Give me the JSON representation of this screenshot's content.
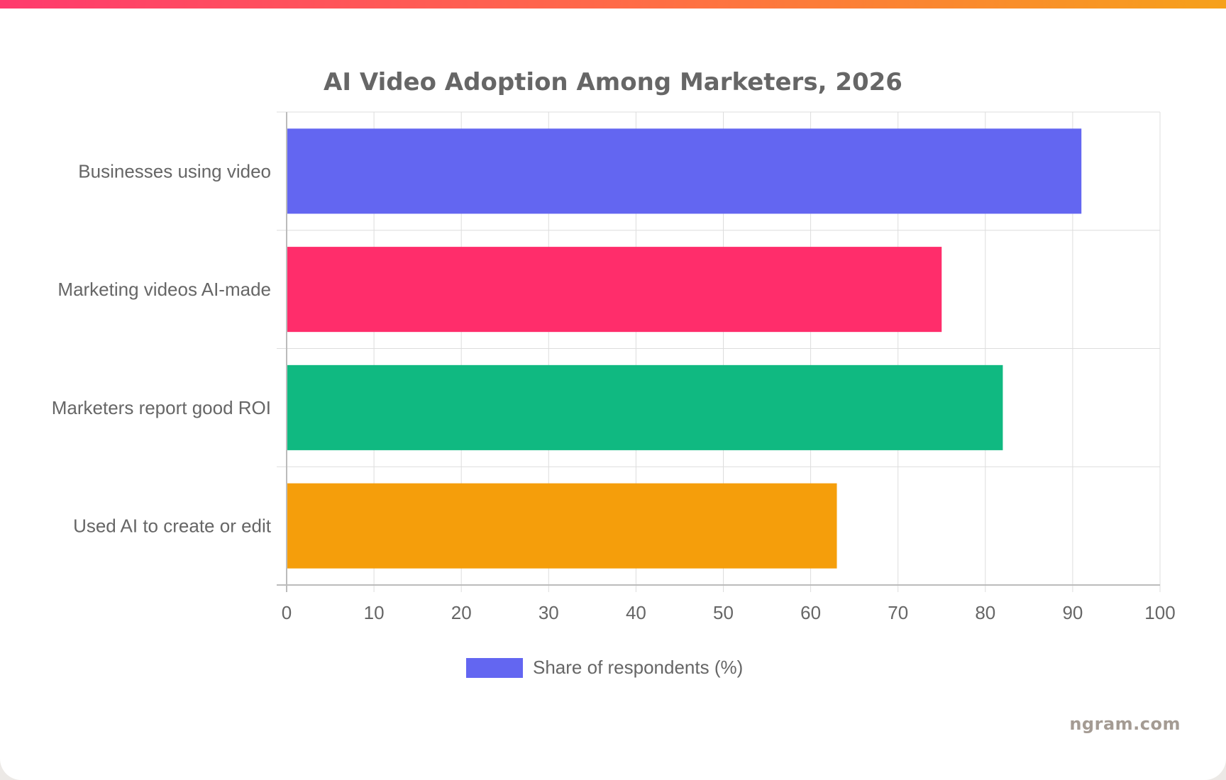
{
  "colors": {
    "strip_start": "#ff3a6e",
    "strip_mid": "#ff6a48",
    "strip_end": "#f6a11a",
    "grid": "#dddddd",
    "axis": "#bbbbbb",
    "text": "#666666"
  },
  "watermark": "ngram.com",
  "chart_data": {
    "type": "bar",
    "orientation": "horizontal",
    "title": "AI Video Adoption Among Marketers, 2026",
    "categories": [
      "Businesses using video",
      "Marketing videos AI-made",
      "Marketers report good ROI",
      "Used AI to create or edit"
    ],
    "series": [
      {
        "name": "Share of respondents (%)",
        "values": [
          91,
          75,
          82,
          63
        ],
        "colors": [
          "#6366f1",
          "#ff2d6b",
          "#10b981",
          "#f59e0b"
        ]
      }
    ],
    "xlim": [
      0,
      100
    ],
    "xticks": [
      0,
      10,
      20,
      30,
      40,
      50,
      60,
      70,
      80,
      90,
      100
    ],
    "grid": true,
    "legend": "bottom"
  }
}
